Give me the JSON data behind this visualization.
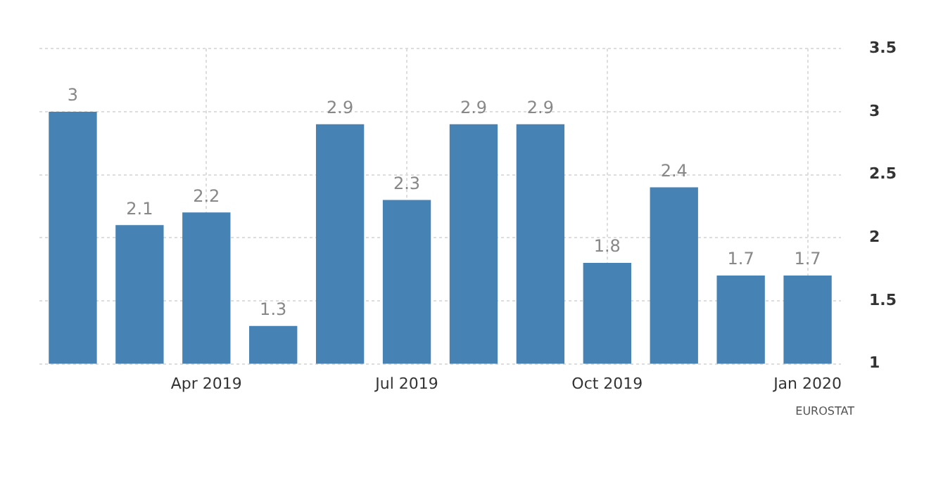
{
  "chart_data": {
    "type": "bar",
    "categories": [
      null,
      null,
      "Apr 2019",
      null,
      null,
      "Jul 2019",
      null,
      null,
      "Oct 2019",
      null,
      null,
      "Jan 2020"
    ],
    "values": [
      3,
      2.1,
      2.2,
      1.3,
      2.9,
      2.3,
      2.9,
      2.9,
      1.8,
      2.4,
      1.7,
      1.7
    ],
    "color": "#4682b4",
    "ylim": [
      1,
      3.5
    ],
    "yticks": [
      1,
      1.5,
      2,
      2.5,
      3,
      3.5
    ],
    "grid": true,
    "data_labels": true,
    "annotations": [
      "EUROSTAT"
    ]
  }
}
